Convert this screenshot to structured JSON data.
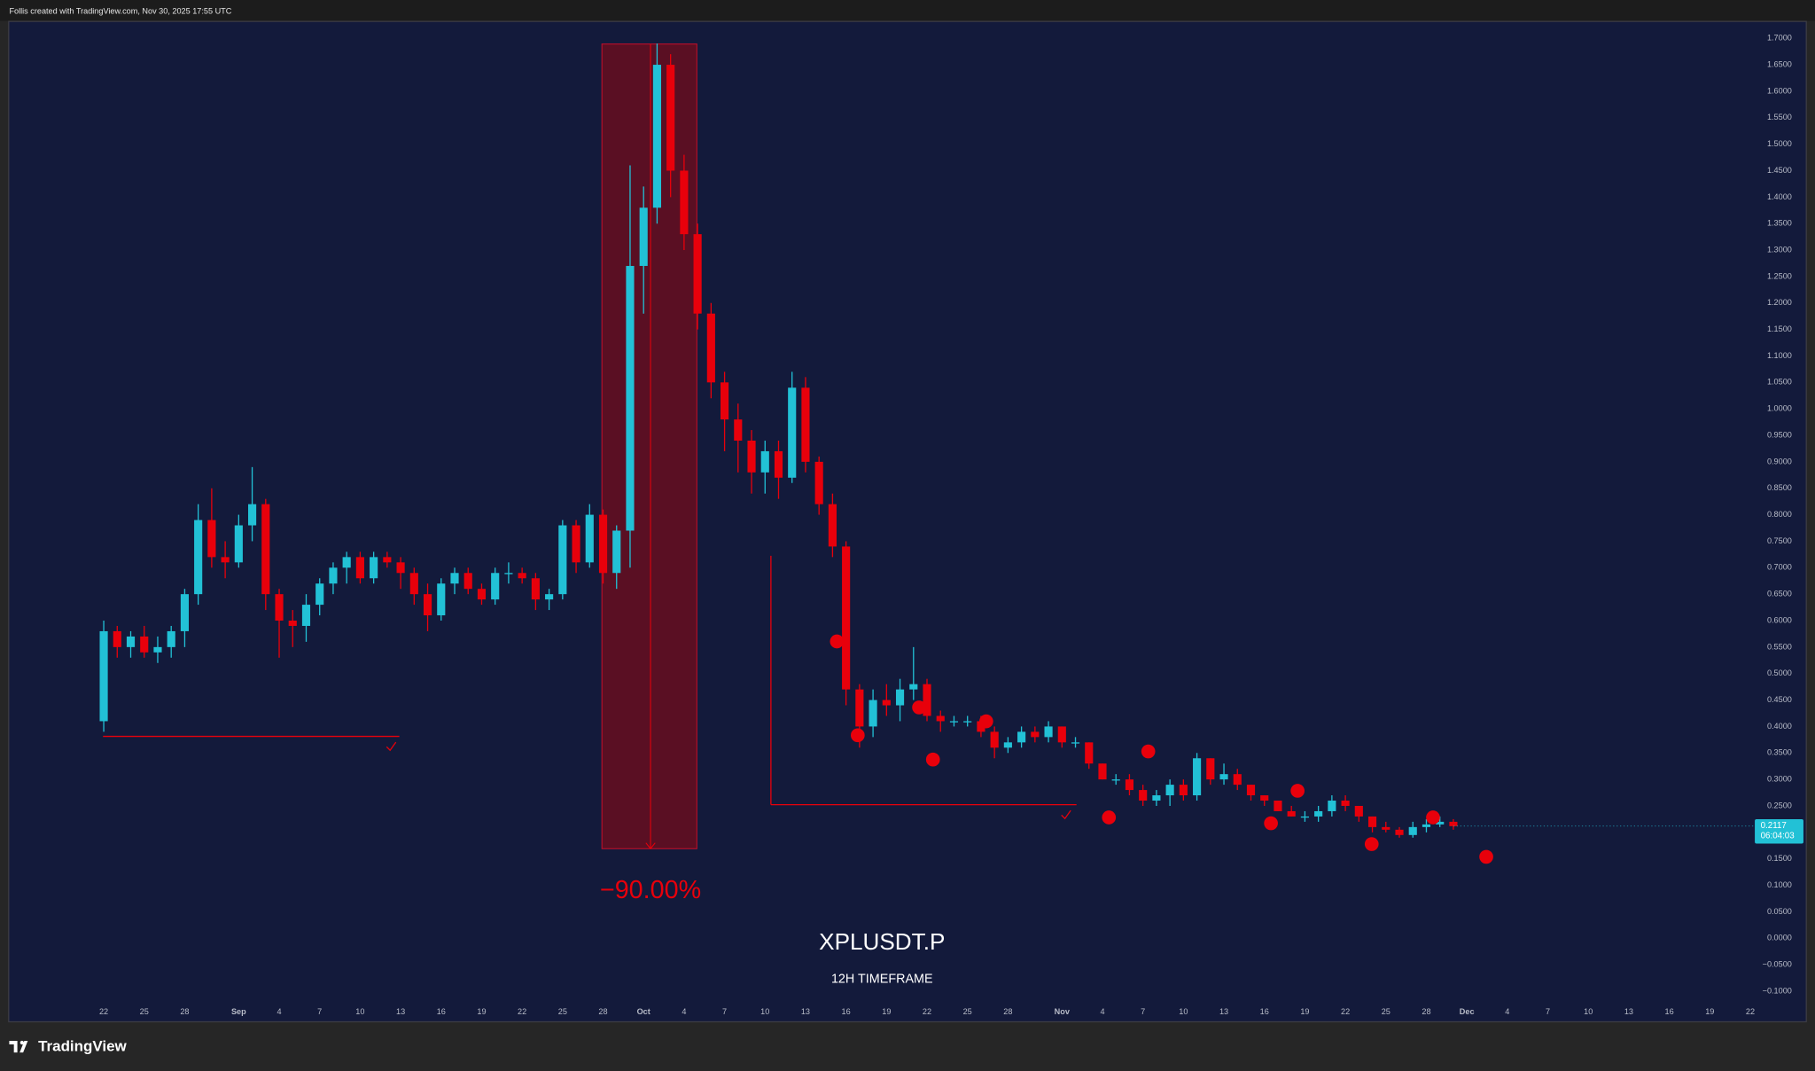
{
  "header": "Follis created with TradingView.com, Nov 30, 2025 17:55 UTC",
  "footer": {
    "logo": "TradingView"
  },
  "chart_data": {
    "type": "candlestick",
    "title": "XPLUSDT.P",
    "subtitle": "12H TIMEFRAME",
    "annotations": [
      "−90.00%"
    ],
    "countdown": "06:04:03",
    "up_color": "#22c1d6",
    "down_color": "#e8000b",
    "x": [
      0,
      1,
      2,
      3,
      4,
      5,
      6,
      7,
      8,
      9,
      10,
      11,
      12,
      13,
      14,
      15,
      16,
      17,
      18,
      19,
      20,
      21,
      22,
      23,
      24,
      25,
      26,
      27,
      28,
      29,
      30,
      31,
      32,
      33,
      34,
      35,
      36,
      37,
      38,
      39,
      40,
      41,
      42,
      43,
      44,
      45,
      46,
      47,
      48,
      49,
      50,
      51,
      52,
      53,
      54,
      55,
      56,
      57,
      58,
      59,
      60,
      61,
      62,
      63,
      64,
      65,
      66,
      67,
      68,
      69,
      70,
      71,
      72,
      73,
      74,
      75,
      76,
      77,
      78,
      79,
      80,
      81,
      82,
      83,
      84,
      85,
      86,
      87,
      88,
      89,
      90,
      91,
      92,
      93,
      94,
      95,
      96,
      97,
      98,
      99,
      100
    ],
    "open": [
      0.41,
      0.58,
      0.55,
      0.57,
      0.54,
      0.55,
      0.58,
      0.65,
      0.79,
      0.72,
      0.71,
      0.78,
      0.82,
      0.65,
      0.6,
      0.59,
      0.63,
      0.67,
      0.7,
      0.72,
      0.68,
      0.72,
      0.71,
      0.69,
      0.65,
      0.61,
      0.67,
      0.69,
      0.66,
      0.64,
      0.69,
      0.69,
      0.68,
      0.64,
      0.65,
      0.78,
      0.71,
      0.8,
      0.69,
      0.77,
      1.27,
      1.38,
      1.65,
      1.45,
      1.33,
      1.18,
      1.05,
      0.98,
      0.94,
      0.88,
      0.92,
      0.87,
      1.04,
      0.9,
      0.82,
      0.74,
      0.47,
      0.4,
      0.45,
      0.44,
      0.47,
      0.48,
      0.42,
      0.41,
      0.41,
      0.41,
      0.39,
      0.36,
      0.37,
      0.39,
      0.38,
      0.4,
      0.37,
      0.37,
      0.33,
      0.3,
      0.3,
      0.28,
      0.26,
      0.27,
      0.29,
      0.27,
      0.34,
      0.3,
      0.31,
      0.29,
      0.27,
      0.26,
      0.24,
      0.23,
      0.23,
      0.24,
      0.26,
      0.25,
      0.23,
      0.21,
      0.205,
      0.195,
      0.21,
      0.215,
      0.22
    ],
    "high": [
      0.6,
      0.59,
      0.58,
      0.59,
      0.57,
      0.59,
      0.66,
      0.82,
      0.85,
      0.75,
      0.8,
      0.89,
      0.83,
      0.66,
      0.62,
      0.65,
      0.68,
      0.71,
      0.73,
      0.73,
      0.73,
      0.73,
      0.72,
      0.7,
      0.67,
      0.68,
      0.7,
      0.7,
      0.67,
      0.7,
      0.71,
      0.7,
      0.69,
      0.66,
      0.79,
      0.79,
      0.82,
      0.81,
      0.78,
      1.46,
      1.42,
      1.69,
      1.67,
      1.48,
      1.35,
      1.2,
      1.07,
      1.01,
      0.96,
      0.94,
      0.94,
      1.07,
      1.06,
      0.91,
      0.84,
      0.75,
      0.48,
      0.47,
      0.48,
      0.49,
      0.55,
      0.49,
      0.43,
      0.42,
      0.42,
      0.42,
      0.4,
      0.38,
      0.4,
      0.4,
      0.41,
      0.4,
      0.38,
      0.37,
      0.33,
      0.31,
      0.31,
      0.29,
      0.28,
      0.3,
      0.3,
      0.35,
      0.34,
      0.33,
      0.32,
      0.29,
      0.27,
      0.26,
      0.25,
      0.24,
      0.25,
      0.27,
      0.27,
      0.25,
      0.23,
      0.22,
      0.21,
      0.22,
      0.225,
      0.23,
      0.225
    ],
    "low": [
      0.39,
      0.53,
      0.53,
      0.53,
      0.52,
      0.53,
      0.55,
      0.63,
      0.7,
      0.68,
      0.7,
      0.75,
      0.62,
      0.53,
      0.55,
      0.56,
      0.61,
      0.65,
      0.67,
      0.67,
      0.67,
      0.7,
      0.66,
      0.63,
      0.58,
      0.6,
      0.65,
      0.65,
      0.63,
      0.63,
      0.67,
      0.67,
      0.62,
      0.62,
      0.64,
      0.69,
      0.7,
      0.67,
      0.66,
      0.7,
      1.18,
      1.35,
      1.4,
      1.3,
      1.15,
      1.02,
      0.92,
      0.88,
      0.84,
      0.84,
      0.83,
      0.86,
      0.88,
      0.8,
      0.72,
      0.44,
      0.36,
      0.38,
      0.42,
      0.41,
      0.45,
      0.41,
      0.39,
      0.4,
      0.4,
      0.38,
      0.34,
      0.35,
      0.36,
      0.37,
      0.37,
      0.36,
      0.36,
      0.32,
      0.3,
      0.29,
      0.27,
      0.25,
      0.25,
      0.25,
      0.26,
      0.26,
      0.29,
      0.29,
      0.28,
      0.26,
      0.25,
      0.24,
      0.23,
      0.22,
      0.22,
      0.23,
      0.24,
      0.22,
      0.2,
      0.2,
      0.19,
      0.19,
      0.2,
      0.21,
      0.205
    ],
    "close": [
      0.58,
      0.55,
      0.57,
      0.54,
      0.55,
      0.58,
      0.65,
      0.79,
      0.72,
      0.71,
      0.78,
      0.82,
      0.65,
      0.6,
      0.59,
      0.63,
      0.67,
      0.7,
      0.72,
      0.68,
      0.72,
      0.71,
      0.69,
      0.65,
      0.61,
      0.67,
      0.69,
      0.66,
      0.64,
      0.69,
      0.69,
      0.68,
      0.64,
      0.65,
      0.78,
      0.71,
      0.8,
      0.69,
      0.77,
      1.27,
      1.38,
      1.65,
      1.45,
      1.33,
      1.18,
      1.05,
      0.98,
      0.94,
      0.88,
      0.92,
      0.87,
      1.04,
      0.9,
      0.82,
      0.74,
      0.47,
      0.4,
      0.45,
      0.44,
      0.47,
      0.48,
      0.42,
      0.41,
      0.41,
      0.41,
      0.39,
      0.36,
      0.37,
      0.39,
      0.38,
      0.4,
      0.37,
      0.37,
      0.33,
      0.3,
      0.3,
      0.28,
      0.26,
      0.27,
      0.29,
      0.27,
      0.34,
      0.3,
      0.31,
      0.29,
      0.27,
      0.26,
      0.24,
      0.23,
      0.23,
      0.24,
      0.26,
      0.25,
      0.23,
      0.21,
      0.205,
      0.195,
      0.21,
      0.215,
      0.22,
      0.2117
    ],
    "xlim": [
      -7,
      122.25
    ],
    "xticks": [
      {
        "value": 0,
        "label": "22"
      },
      {
        "value": 3,
        "label": "25"
      },
      {
        "value": 6,
        "label": "28"
      },
      {
        "value": 10,
        "label": "Sep"
      },
      {
        "value": 13,
        "label": "4"
      },
      {
        "value": 16,
        "label": "7"
      },
      {
        "value": 19,
        "label": "10"
      },
      {
        "value": 22,
        "label": "13"
      },
      {
        "value": 25,
        "label": "16"
      },
      {
        "value": 28,
        "label": "19"
      },
      {
        "value": 31,
        "label": "22"
      },
      {
        "value": 34,
        "label": "25"
      },
      {
        "value": 37,
        "label": "28"
      },
      {
        "value": 40,
        "label": "Oct"
      },
      {
        "value": 43,
        "label": "4"
      },
      {
        "value": 46,
        "label": "7"
      },
      {
        "value": 49,
        "label": "10"
      },
      {
        "value": 52,
        "label": "13"
      },
      {
        "value": 55,
        "label": "16"
      },
      {
        "value": 58,
        "label": "19"
      },
      {
        "value": 61,
        "label": "22"
      },
      {
        "value": 64,
        "label": "25"
      },
      {
        "value": 67,
        "label": "28"
      },
      {
        "value": 71,
        "label": "Nov"
      },
      {
        "value": 74,
        "label": "4"
      },
      {
        "value": 77,
        "label": "7"
      },
      {
        "value": 80,
        "label": "10"
      },
      {
        "value": 83,
        "label": "13"
      },
      {
        "value": 86,
        "label": "16"
      },
      {
        "value": 89,
        "label": "19"
      },
      {
        "value": 92,
        "label": "22"
      },
      {
        "value": 95,
        "label": "25"
      },
      {
        "value": 98,
        "label": "28"
      },
      {
        "value": 101,
        "label": "Dec"
      },
      {
        "value": 104,
        "label": "4"
      },
      {
        "value": 107,
        "label": "7"
      },
      {
        "value": 110,
        "label": "10"
      },
      {
        "value": 113,
        "label": "13"
      },
      {
        "value": 116,
        "label": "16"
      },
      {
        "value": 119,
        "label": "19"
      },
      {
        "value": 122,
        "label": "22"
      }
    ],
    "ylim": [
      -0.113,
      1.733
    ],
    "yticks": [
      {
        "value": 1.7,
        "label": "1.7000"
      },
      {
        "value": 1.65,
        "label": "1.6500"
      },
      {
        "value": 1.6,
        "label": "1.6000"
      },
      {
        "value": 1.55,
        "label": "1.5500"
      },
      {
        "value": 1.5,
        "label": "1.5000"
      },
      {
        "value": 1.45,
        "label": "1.4500"
      },
      {
        "value": 1.4,
        "label": "1.4000"
      },
      {
        "value": 1.35,
        "label": "1.3500"
      },
      {
        "value": 1.3,
        "label": "1.3000"
      },
      {
        "value": 1.25,
        "label": "1.2500"
      },
      {
        "value": 1.2,
        "label": "1.2000"
      },
      {
        "value": 1.15,
        "label": "1.1500"
      },
      {
        "value": 1.1,
        "label": "1.1000"
      },
      {
        "value": 1.05,
        "label": "1.0500"
      },
      {
        "value": 1.0,
        "label": "1.0000"
      },
      {
        "value": 0.95,
        "label": "0.9500"
      },
      {
        "value": 0.9,
        "label": "0.9000"
      },
      {
        "value": 0.85,
        "label": "0.8500"
      },
      {
        "value": 0.8,
        "label": "0.8000"
      },
      {
        "value": 0.75,
        "label": "0.7500"
      },
      {
        "value": 0.7,
        "label": "0.7000"
      },
      {
        "value": 0.65,
        "label": "0.6500"
      },
      {
        "value": 0.6,
        "label": "0.6000"
      },
      {
        "value": 0.55,
        "label": "0.5500"
      },
      {
        "value": 0.5,
        "label": "0.5000"
      },
      {
        "value": 0.45,
        "label": "0.4500"
      },
      {
        "value": 0.4,
        "label": "0.4000"
      },
      {
        "value": 0.35,
        "label": "0.3500"
      },
      {
        "value": 0.3,
        "label": "0.3000"
      },
      {
        "value": 0.25,
        "label": "0.2500"
      },
      {
        "value": 0.2,
        "label": "0.2000"
      },
      {
        "value": 0.15,
        "label": "0.1500"
      },
      {
        "value": 0.1,
        "label": "0.1000"
      },
      {
        "value": 0.05,
        "label": "0.0500"
      },
      {
        "value": 0,
        "label": "0.0000"
      },
      {
        "value": -0.05,
        "label": "−0.0500"
      },
      {
        "value": -0.1,
        "label": "−0.1000"
      }
    ]
  }
}
